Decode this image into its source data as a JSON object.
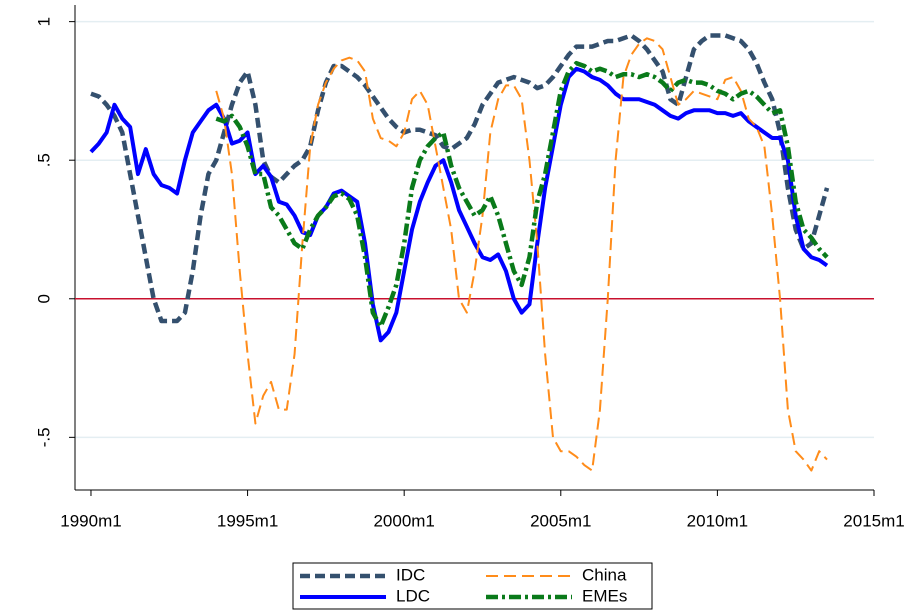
{
  "chart_data": {
    "type": "line",
    "x": [
      1990,
      1990.25,
      1990.5,
      1990.75,
      1991,
      1991.25,
      1991.5,
      1991.75,
      1992,
      1992.25,
      1992.5,
      1992.75,
      1993,
      1993.25,
      1993.5,
      1993.75,
      1994,
      1994.25,
      1994.5,
      1994.75,
      1995,
      1995.25,
      1995.5,
      1995.75,
      1996,
      1996.25,
      1996.5,
      1996.75,
      1997,
      1997.25,
      1997.5,
      1997.75,
      1998,
      1998.25,
      1998.5,
      1998.75,
      1999,
      1999.25,
      1999.5,
      1999.75,
      2000,
      2000.25,
      2000.5,
      2000.75,
      2001,
      2001.25,
      2001.5,
      2001.75,
      2002,
      2002.25,
      2002.5,
      2002.75,
      2003,
      2003.25,
      2003.5,
      2003.75,
      2004,
      2004.25,
      2004.5,
      2004.75,
      2005,
      2005.25,
      2005.5,
      2005.75,
      2006,
      2006.25,
      2006.5,
      2006.75,
      2007,
      2007.25,
      2007.5,
      2007.75,
      2008,
      2008.25,
      2008.5,
      2008.75,
      2009,
      2009.25,
      2009.5,
      2009.75,
      2010,
      2010.25,
      2010.5,
      2010.75,
      2011,
      2011.25,
      2011.5,
      2011.75,
      2012,
      2012.25,
      2012.5,
      2012.75,
      2013,
      2013.25,
      2013.5
    ],
    "series": [
      {
        "name": "IDC",
        "color": "#34506e",
        "dash": "10,5",
        "width": 4.5,
        "values": [
          0.74,
          0.73,
          0.7,
          0.66,
          0.6,
          0.45,
          0.3,
          0.15,
          0.0,
          -0.08,
          -0.08,
          -0.08,
          -0.05,
          0.1,
          0.3,
          0.45,
          0.5,
          0.6,
          0.7,
          0.78,
          0.82,
          0.7,
          0.5,
          0.44,
          0.42,
          0.45,
          0.48,
          0.5,
          0.55,
          0.68,
          0.78,
          0.84,
          0.84,
          0.82,
          0.8,
          0.77,
          0.73,
          0.69,
          0.65,
          0.62,
          0.6,
          0.61,
          0.61,
          0.6,
          0.59,
          0.55,
          0.54,
          0.56,
          0.58,
          0.63,
          0.7,
          0.74,
          0.78,
          0.79,
          0.8,
          0.79,
          0.78,
          0.76,
          0.77,
          0.8,
          0.84,
          0.88,
          0.91,
          0.91,
          0.91,
          0.92,
          0.93,
          0.93,
          0.94,
          0.95,
          0.93,
          0.9,
          0.86,
          0.82,
          0.72,
          0.7,
          0.8,
          0.9,
          0.93,
          0.95,
          0.95,
          0.95,
          0.94,
          0.93,
          0.9,
          0.85,
          0.78,
          0.72,
          0.6,
          0.4,
          0.25,
          0.18,
          0.2,
          0.3,
          0.4
        ]
      },
      {
        "name": "LDC",
        "color": "#0000ff",
        "dash": "none",
        "width": 4,
        "values": [
          0.53,
          0.56,
          0.6,
          0.7,
          0.65,
          0.62,
          0.45,
          0.54,
          0.45,
          0.41,
          0.4,
          0.38,
          0.5,
          0.6,
          0.64,
          0.68,
          0.7,
          0.65,
          0.56,
          0.57,
          0.6,
          0.45,
          0.48,
          0.44,
          0.35,
          0.34,
          0.3,
          0.24,
          0.23,
          0.3,
          0.33,
          0.38,
          0.39,
          0.37,
          0.35,
          0.2,
          -0.02,
          -0.15,
          -0.12,
          -0.05,
          0.1,
          0.25,
          0.35,
          0.42,
          0.48,
          0.5,
          0.42,
          0.32,
          0.26,
          0.2,
          0.15,
          0.14,
          0.16,
          0.1,
          0.0,
          -0.05,
          -0.02,
          0.2,
          0.4,
          0.55,
          0.7,
          0.8,
          0.83,
          0.82,
          0.8,
          0.79,
          0.77,
          0.74,
          0.72,
          0.72,
          0.72,
          0.71,
          0.7,
          0.68,
          0.66,
          0.65,
          0.67,
          0.68,
          0.68,
          0.68,
          0.67,
          0.67,
          0.66,
          0.67,
          0.64,
          0.62,
          0.6,
          0.58,
          0.58,
          0.5,
          0.3,
          0.18,
          0.15,
          0.14,
          0.12
        ]
      },
      {
        "name": "China",
        "color": "#ff8c1a",
        "dash": "12,6",
        "width": 2,
        "values": [
          null,
          null,
          null,
          null,
          null,
          null,
          null,
          null,
          null,
          null,
          null,
          null,
          null,
          null,
          null,
          null,
          0.75,
          0.65,
          0.45,
          0.1,
          -0.2,
          -0.45,
          -0.35,
          -0.3,
          -0.4,
          -0.4,
          -0.2,
          0.2,
          0.55,
          0.7,
          0.78,
          0.83,
          0.86,
          0.87,
          0.86,
          0.82,
          0.65,
          0.58,
          0.57,
          0.55,
          0.6,
          0.72,
          0.75,
          0.7,
          0.55,
          0.4,
          0.25,
          0.0,
          -0.05,
          0.1,
          0.3,
          0.6,
          0.72,
          0.77,
          0.77,
          0.72,
          0.5,
          0.2,
          -0.2,
          -0.5,
          -0.55,
          -0.55,
          -0.57,
          -0.6,
          -0.62,
          -0.4,
          0.0,
          0.5,
          0.8,
          0.88,
          0.92,
          0.94,
          0.93,
          0.9,
          0.8,
          0.7,
          0.72,
          0.75,
          0.74,
          0.73,
          0.72,
          0.79,
          0.8,
          0.75,
          0.65,
          0.62,
          0.55,
          0.3,
          0.0,
          -0.4,
          -0.55,
          -0.58,
          -0.62,
          -0.55,
          -0.58
        ]
      },
      {
        "name": "EMEs",
        "color": "#0a7a1a",
        "dash": "12,4,3,4",
        "width": 4.5,
        "values": [
          null,
          null,
          null,
          null,
          null,
          null,
          null,
          null,
          null,
          null,
          null,
          null,
          null,
          null,
          null,
          null,
          0.65,
          0.64,
          0.66,
          0.62,
          0.55,
          0.45,
          0.45,
          0.33,
          0.3,
          0.25,
          0.2,
          0.18,
          0.25,
          0.3,
          0.33,
          0.37,
          0.38,
          0.36,
          0.3,
          0.15,
          -0.05,
          -0.1,
          -0.03,
          0.05,
          0.2,
          0.4,
          0.5,
          0.55,
          0.58,
          0.6,
          0.48,
          0.4,
          0.35,
          0.3,
          0.32,
          0.37,
          0.3,
          0.2,
          0.1,
          0.05,
          0.15,
          0.35,
          0.45,
          0.6,
          0.75,
          0.82,
          0.85,
          0.84,
          0.82,
          0.83,
          0.82,
          0.8,
          0.81,
          0.81,
          0.8,
          0.81,
          0.8,
          0.78,
          0.75,
          0.78,
          0.79,
          0.78,
          0.78,
          0.77,
          0.75,
          0.74,
          0.72,
          0.74,
          0.75,
          0.73,
          0.7,
          0.67,
          0.68,
          0.55,
          0.35,
          0.25,
          0.22,
          0.18,
          0.15
        ]
      }
    ],
    "xlim": [
      1989.49,
      2015
    ],
    "xticks": [
      {
        "value": 1990,
        "label": "1990m1"
      },
      {
        "value": 1995,
        "label": "1995m1"
      },
      {
        "value": 2000,
        "label": "2000m1"
      },
      {
        "value": 2005,
        "label": "2005m1"
      },
      {
        "value": 2010,
        "label": "2010m1"
      },
      {
        "value": 2015,
        "label": "2015m1"
      }
    ],
    "ylim": [
      -0.69,
      1.06
    ],
    "yticks": [
      {
        "value": -0.5,
        "label": "-.5"
      },
      0,
      {
        "value": 0.5,
        "label": ".5"
      },
      1
    ],
    "grid": true,
    "hline": 0,
    "hline_color": "#c8102e",
    "legend": "bottom"
  }
}
